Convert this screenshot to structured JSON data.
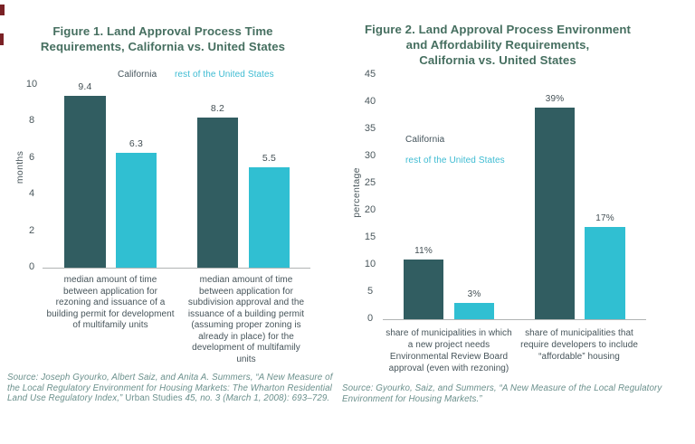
{
  "palette": {
    "california_bar": "#315d61",
    "rest_of_us_bar": "#30bfd2",
    "title_text": "#466f60",
    "axis_text": "#4a575c",
    "value_label_text": "#434f54",
    "legend_california_text": "#42525a",
    "legend_rest_text": "#3dbbd2",
    "source_text": "#6b908c",
    "axis_line": "#b0b4b4",
    "edge_artifact": "#7a2125"
  },
  "chart_data": [
    {
      "type": "bar",
      "title": "Figure 1. Land Approval Process Time\nRequirements, California vs. United States",
      "ylabel": "months",
      "xlabel": "",
      "ylim": [
        0,
        10
      ],
      "yticks": [
        0,
        2,
        4,
        6,
        8,
        10
      ],
      "grid": false,
      "legend_position": "top-inside",
      "categories": [
        "median amount of time\nbetween application for\nrezoning and issuance of a\nbuilding permit for development\nof multifamily units",
        "median amount of time\nbetween application for\nsubdivision approval and the\nissuance of a building permit\n(assuming proper zoning is\nalready in place) for the\ndevelopment of multifamily\nunits"
      ],
      "series": [
        {
          "name": "California",
          "color": "#315d61",
          "values": [
            9.4,
            8.2
          ],
          "value_labels": [
            "9.4",
            "8.2"
          ]
        },
        {
          "name": "rest of the United States",
          "color": "#30bfd2",
          "values": [
            6.3,
            5.5
          ],
          "value_labels": [
            "6.3",
            "5.5"
          ]
        }
      ],
      "source": {
        "prefix": "Source: Joseph Gyourko, Albert Saiz, and Anita A. Summers, “A New Measure of\nthe Local Regulatory Environment for Housing Markets: The Wharton Residential\nLand Use Regulatory Index,” ",
        "journal": "Urban Studies",
        "suffix": " 45, no. 3 (March 1, 2008): 693–729."
      }
    },
    {
      "type": "bar",
      "title": "Figure 2. Land Approval Process Environment\nand Affordability Requirements,\nCalifornia vs. United States",
      "ylabel": "percentage",
      "xlabel": "",
      "ylim": [
        0,
        45
      ],
      "yticks": [
        0,
        5,
        10,
        15,
        20,
        25,
        30,
        35,
        40,
        45
      ],
      "grid": false,
      "legend_position": "left-inside",
      "categories": [
        "share of municipalities in which\na new project needs\nEnvironmental Review Board\napproval (even with rezoning)",
        "share of municipalities that\nrequire developers to include\n“affordable” housing"
      ],
      "series": [
        {
          "name": "California",
          "color": "#315d61",
          "values": [
            11,
            39
          ],
          "value_labels": [
            "11%",
            "39%"
          ]
        },
        {
          "name": "rest of the United States",
          "color": "#30bfd2",
          "values": [
            3,
            17
          ],
          "value_labels": [
            "3%",
            "17%"
          ]
        }
      ],
      "source": {
        "prefix": "Source: Gyourko, Saiz, and Summers, “A New Measure of the Local Regulatory\nEnvironment for Housing Markets.”",
        "journal": "",
        "suffix": ""
      }
    }
  ]
}
